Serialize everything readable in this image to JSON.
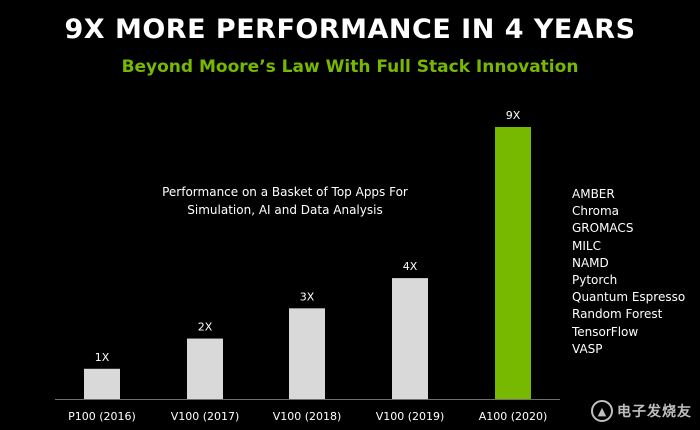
{
  "slide": {
    "title": "9X MORE PERFORMANCE IN 4 YEARS",
    "subtitle": "Beyond Moore’s Law With Full Stack Innovation"
  },
  "chart_data": {
    "type": "bar",
    "title": "",
    "annotation": [
      "Performance on a Basket of Top Apps For",
      "Simulation, AI and Data Analysis"
    ],
    "categories": [
      "P100 (2016)",
      "V100 (2017)",
      "V100 (2018)",
      "V100 (2019)",
      "A100 (2020)"
    ],
    "values": [
      1,
      2,
      3,
      4,
      9
    ],
    "data_labels": [
      "1X",
      "2X",
      "3X",
      "4X",
      "9X"
    ],
    "ylim": [
      0,
      9
    ],
    "grid": false,
    "legend": "none",
    "bar_colors": [
      "#d9d9d9",
      "#d9d9d9",
      "#d9d9d9",
      "#d9d9d9",
      "#76b900"
    ]
  },
  "apps": [
    "AMBER",
    "Chroma",
    "GROMACS",
    "MILC",
    "NAMD",
    "Pytorch",
    "Quantum Espresso",
    "Random Forest",
    "TensorFlow",
    "VASP"
  ],
  "watermark": {
    "logo_icon": "electronic-enthusiast-logo-icon",
    "text": "电子发烧友"
  },
  "colors": {
    "background": "#000000",
    "accent": "#76b900",
    "bar": "#d9d9d9",
    "text": "#ffffff"
  }
}
